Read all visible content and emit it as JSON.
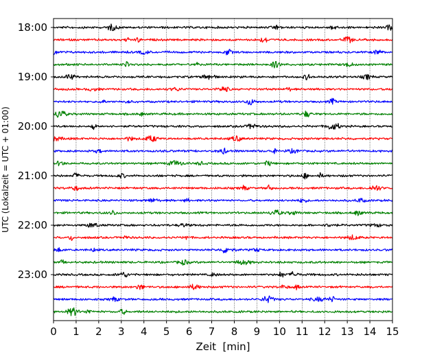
{
  "chart_data": {
    "type": "line",
    "title": "",
    "xlabel": "Zeit  [min]",
    "ylabel": "UTC (Lokalzeit = UTC + 01:00)",
    "xlim": [
      0,
      15
    ],
    "x_ticks": [
      "0",
      "1",
      "2",
      "3",
      "4",
      "5",
      "6",
      "7",
      "8",
      "9",
      "10",
      "11",
      "12",
      "13",
      "14",
      "15"
    ],
    "y_ticks": [
      "18:00",
      "19:00",
      "20:00",
      "21:00",
      "22:00",
      "23:00"
    ],
    "grid": "vertical dotted lines at each minute",
    "trace_interval_minutes": 15,
    "trace_colors": [
      "#000000",
      "#ff0000",
      "#0000ff",
      "#008000"
    ],
    "traces": [
      {
        "start": "18:00",
        "color": "#000000"
      },
      {
        "start": "18:15",
        "color": "#ff0000"
      },
      {
        "start": "18:30",
        "color": "#0000ff"
      },
      {
        "start": "18:45",
        "color": "#008000"
      },
      {
        "start": "19:00",
        "color": "#000000"
      },
      {
        "start": "19:15",
        "color": "#ff0000"
      },
      {
        "start": "19:30",
        "color": "#0000ff"
      },
      {
        "start": "19:45",
        "color": "#008000"
      },
      {
        "start": "20:00",
        "color": "#000000"
      },
      {
        "start": "20:15",
        "color": "#ff0000"
      },
      {
        "start": "20:30",
        "color": "#0000ff"
      },
      {
        "start": "20:45",
        "color": "#008000"
      },
      {
        "start": "21:00",
        "color": "#000000"
      },
      {
        "start": "21:15",
        "color": "#ff0000"
      },
      {
        "start": "21:30",
        "color": "#0000ff"
      },
      {
        "start": "21:45",
        "color": "#008000"
      },
      {
        "start": "22:00",
        "color": "#000000"
      },
      {
        "start": "22:15",
        "color": "#ff0000"
      },
      {
        "start": "22:30",
        "color": "#0000ff"
      },
      {
        "start": "22:45",
        "color": "#008000"
      },
      {
        "start": "23:00",
        "color": "#000000"
      },
      {
        "start": "23:15",
        "color": "#ff0000"
      },
      {
        "start": "23:30",
        "color": "#0000ff"
      },
      {
        "start": "23:45",
        "color": "#008000"
      }
    ]
  }
}
